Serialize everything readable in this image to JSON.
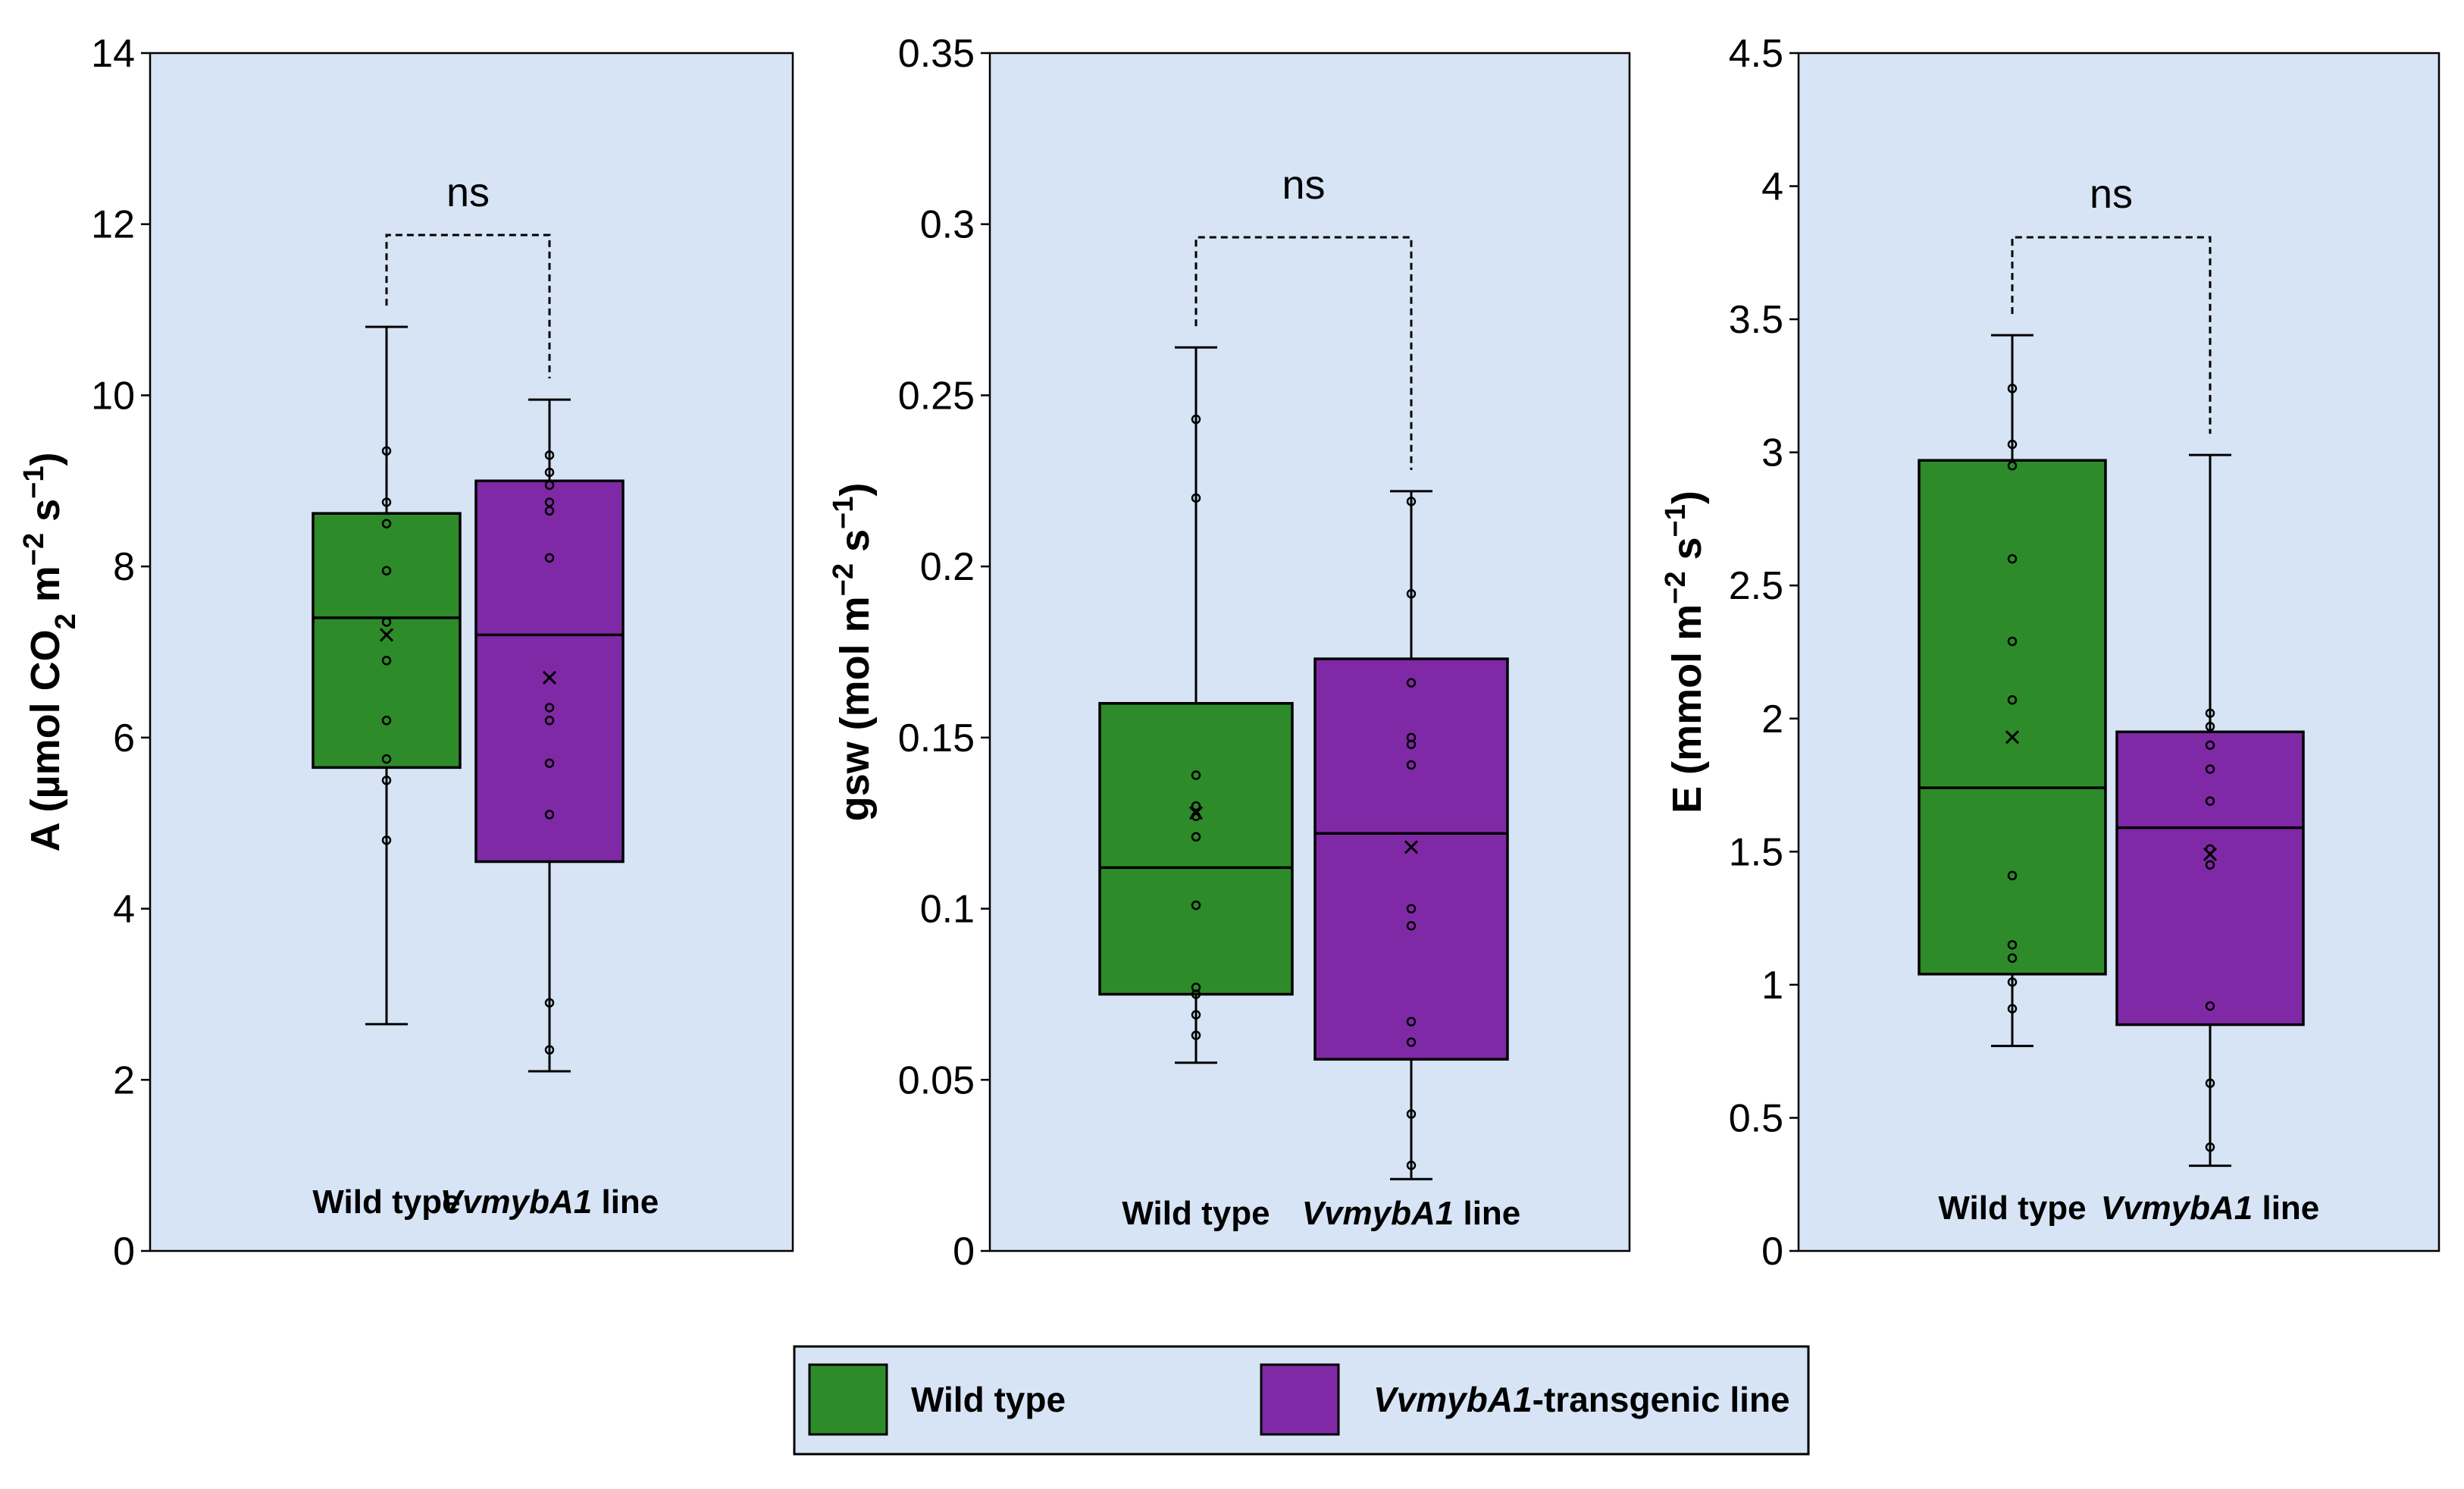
{
  "colors": {
    "panel_bg": "#d6e4f5",
    "wild_type": "#2e8b2a",
    "transgenic": "#8029a6",
    "stroke": "#000000"
  },
  "chart_data": [
    {
      "type": "box",
      "ylabel": {
        "main": "A (µmol CO",
        "sub": "2",
        "rest": " m",
        "sup1": "−2",
        "mid": " s",
        "sup2": "−1",
        "end": ")"
      },
      "ylim": [
        0,
        14
      ],
      "yticks": [
        "0",
        "2",
        "4",
        "6",
        "8",
        "10",
        "12",
        "14"
      ],
      "tick_values": [
        0,
        2,
        4,
        6,
        8,
        10,
        12,
        14
      ],
      "categories": [
        {
          "plain": "Wild type",
          "italic": ""
        },
        {
          "plain": " line",
          "italic": "VvmybA1"
        }
      ],
      "significance": "ns",
      "boxes": [
        {
          "name": "Wild type",
          "min": 2.65,
          "q1": 5.65,
          "median": 7.4,
          "q3": 8.62,
          "max": 10.8,
          "mean": 7.2,
          "points": [
            4.8,
            5.5,
            5.75,
            6.2,
            6.9,
            7.35,
            7.95,
            8.5,
            8.75,
            9.35
          ]
        },
        {
          "name": "VvmybA1 line",
          "min": 2.1,
          "q1": 4.55,
          "median": 7.2,
          "q3": 9.0,
          "max": 9.95,
          "mean": 6.7,
          "points": [
            2.35,
            2.9,
            5.1,
            5.7,
            6.2,
            6.35,
            8.1,
            8.65,
            8.75,
            8.95,
            9.1,
            9.3
          ]
        }
      ]
    },
    {
      "type": "box",
      "ylabel": {
        "main": "gsw (mol m",
        "sup1": "−2",
        "mid": " s",
        "sup2": "−1",
        "end": ")"
      },
      "ylim": [
        0,
        0.35
      ],
      "yticks": [
        "0",
        "0.05",
        "0.1",
        "0.15",
        "0.2",
        "0.25",
        "0.3",
        "0.35"
      ],
      "tick_values": [
        0,
        0.05,
        0.1,
        0.15,
        0.2,
        0.25,
        0.3,
        0.35
      ],
      "categories": [
        {
          "plain": "Wild type",
          "italic": ""
        },
        {
          "plain": " line",
          "italic": "VvmybA1"
        }
      ],
      "significance": "ns",
      "boxes": [
        {
          "name": "Wild type",
          "min": 0.055,
          "q1": 0.075,
          "median": 0.112,
          "q3": 0.16,
          "max": 0.264,
          "mean": 0.128,
          "points": [
            0.063,
            0.069,
            0.075,
            0.077,
            0.101,
            0.121,
            0.127,
            0.13,
            0.139,
            0.22,
            0.243
          ]
        },
        {
          "name": "VvmybA1 line",
          "min": 0.021,
          "q1": 0.056,
          "median": 0.122,
          "q3": 0.173,
          "max": 0.222,
          "mean": 0.118,
          "points": [
            0.025,
            0.04,
            0.061,
            0.067,
            0.095,
            0.1,
            0.142,
            0.148,
            0.15,
            0.166,
            0.192,
            0.219
          ]
        }
      ]
    },
    {
      "type": "box",
      "ylabel": {
        "main": "E (mmol m",
        "sup1": "−2",
        "mid": " s",
        "sup2": "−1",
        "end": ")"
      },
      "ylim": [
        0,
        4.5
      ],
      "yticks": [
        "0",
        "0.5",
        "1",
        "1.5",
        "2",
        "2.5",
        "3",
        "3.5",
        "4",
        "4.5"
      ],
      "tick_values": [
        0,
        0.5,
        1,
        1.5,
        2,
        2.5,
        3,
        3.5,
        4,
        4.5
      ],
      "categories": [
        {
          "plain": "Wild type",
          "italic": ""
        },
        {
          "plain": " line",
          "italic": "VvmybA1"
        }
      ],
      "significance": "ns",
      "boxes": [
        {
          "name": "Wild type",
          "min": 0.77,
          "q1": 1.04,
          "median": 1.74,
          "q3": 2.97,
          "max": 3.44,
          "mean": 1.93,
          "points": [
            0.91,
            1.01,
            1.1,
            1.15,
            1.41,
            2.07,
            2.29,
            2.6,
            2.95,
            3.03,
            3.24
          ]
        },
        {
          "name": "VvmybA1 line",
          "min": 0.32,
          "q1": 0.85,
          "median": 1.59,
          "q3": 1.95,
          "max": 2.99,
          "mean": 1.49,
          "points": [
            0.39,
            0.63,
            0.92,
            1.45,
            1.51,
            1.69,
            1.81,
            1.9,
            1.97,
            2.02
          ]
        }
      ]
    }
  ],
  "legend": {
    "items": [
      {
        "plain": "Wild type",
        "italic": ""
      },
      {
        "plain": "-transgenic line",
        "italic": "VvmybA1"
      }
    ]
  }
}
